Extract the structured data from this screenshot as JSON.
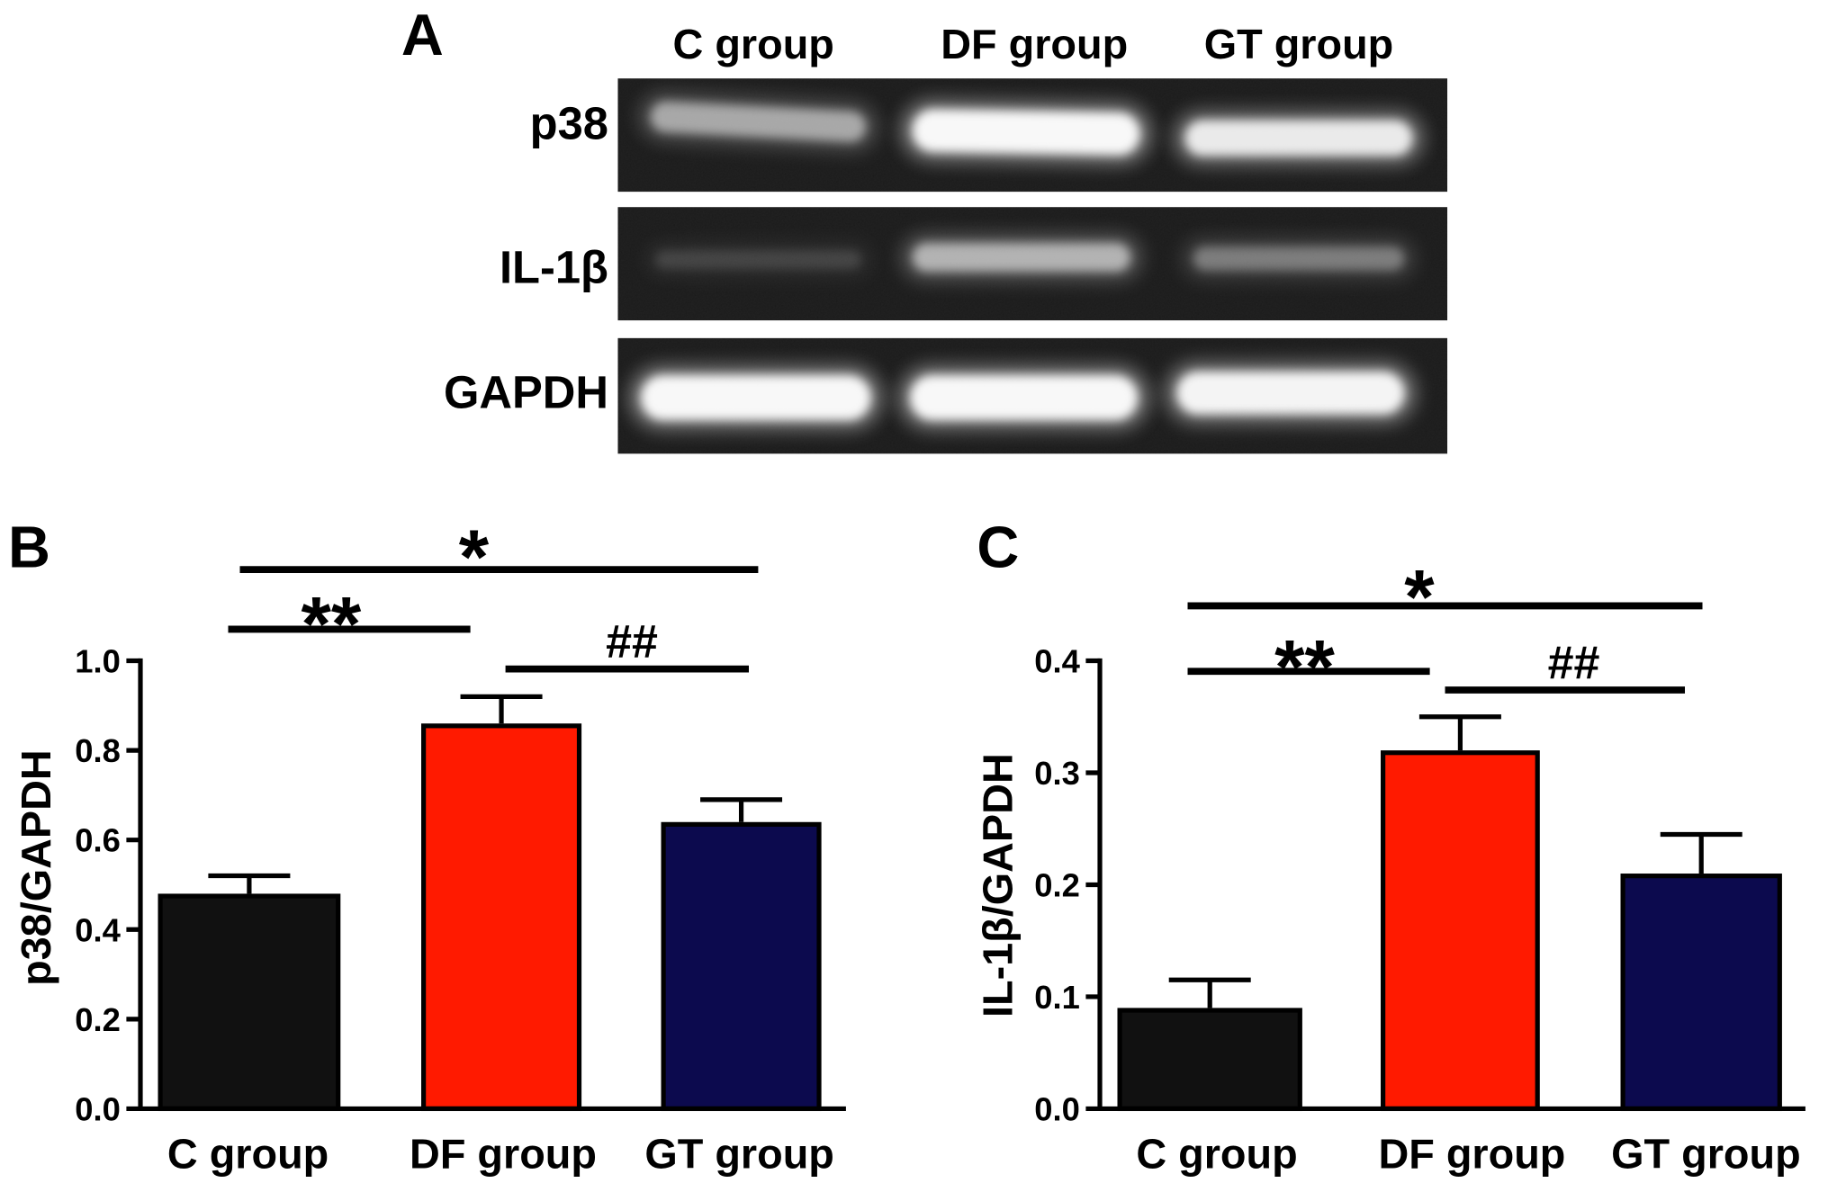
{
  "panel_a": {
    "label": "A",
    "columns": [
      "C group",
      "DF group",
      "GT group"
    ],
    "rows": [
      {
        "label": "p38",
        "band_intensity": [
          0.5,
          0.95,
          0.85
        ]
      },
      {
        "label": "IL-1β",
        "band_intensity": [
          0.12,
          0.55,
          0.32
        ]
      },
      {
        "label": "GAPDH",
        "band_intensity": [
          0.95,
          0.95,
          0.92
        ]
      }
    ]
  },
  "chart_data": [
    {
      "panel_label": "B",
      "type": "bar",
      "categories": [
        "C group",
        "DF group",
        "GT group"
      ],
      "values": [
        0.48,
        0.86,
        0.64
      ],
      "error": [
        0.04,
        0.06,
        0.05
      ],
      "bar_colors": [
        "#111111",
        "#ff1a00",
        "#0c0a4e"
      ],
      "ylabel": "p38/GAPDH",
      "ylim": [
        0,
        1.0
      ],
      "yticks": [
        "0.0",
        "0.2",
        "0.4",
        "0.6",
        "0.8",
        "1.0"
      ],
      "grid": false,
      "significance": [
        {
          "label": "*",
          "from": 0,
          "to": 2
        },
        {
          "label": "**",
          "from": 0,
          "to": 1
        },
        {
          "label": "##",
          "from": 1,
          "to": 2
        }
      ]
    },
    {
      "panel_label": "C",
      "type": "bar",
      "categories": [
        "C group",
        "DF group",
        "GT group"
      ],
      "values": [
        0.09,
        0.32,
        0.21
      ],
      "error": [
        0.025,
        0.03,
        0.035
      ],
      "bar_colors": [
        "#111111",
        "#ff1a00",
        "#0c0a4e"
      ],
      "ylabel": "IL-1β/GAPDH",
      "ylim": [
        0,
        0.4
      ],
      "yticks": [
        "0.0",
        "0.1",
        "0.2",
        "0.3",
        "0.4"
      ],
      "grid": false,
      "significance": [
        {
          "label": "*",
          "from": 0,
          "to": 2
        },
        {
          "label": "**",
          "from": 0,
          "to": 1
        },
        {
          "label": "##",
          "from": 1,
          "to": 2
        }
      ]
    }
  ]
}
